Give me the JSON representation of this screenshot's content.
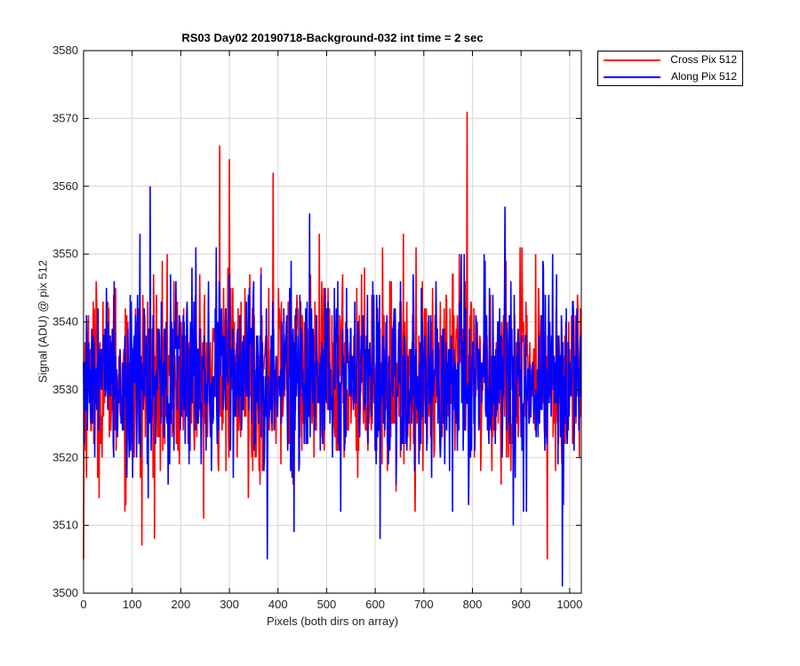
{
  "chart_data": {
    "type": "line",
    "title": "RS03 Day02 20190718-Background-032 int time = 2 sec",
    "xlabel": "Pixels (both dirs on array)",
    "ylabel": "Signal (ADU) @ pix 512",
    "xlim": [
      0,
      1024
    ],
    "ylim": [
      3500,
      3580
    ],
    "xticks": [
      0,
      100,
      200,
      300,
      400,
      500,
      600,
      700,
      800,
      900,
      1000
    ],
    "yticks": [
      3500,
      3510,
      3520,
      3530,
      3540,
      3550,
      3560,
      3570,
      3580
    ],
    "grid": true,
    "legend_position": "outside-top-right",
    "series": [
      {
        "name": "Cross Pix 512",
        "color": "#ff0000",
        "x_start": 0,
        "x_end": 1023,
        "mean": 3532,
        "std": 7,
        "points_sampled": 1024,
        "notable_points": [
          [
            0,
            3505
          ],
          [
            120,
            3507
          ],
          [
            280,
            3566
          ],
          [
            300,
            3564
          ],
          [
            390,
            3562
          ],
          [
            789,
            3571
          ],
          [
            954,
            3505
          ]
        ]
      },
      {
        "name": "Along Pix 512",
        "color": "#0000ff",
        "x_start": 0,
        "x_end": 1023,
        "mean": 3532,
        "std": 7,
        "points_sampled": 1024,
        "notable_points": [
          [
            137,
            3560
          ],
          [
            378,
            3505
          ],
          [
            610,
            3508
          ],
          [
            867,
            3557
          ],
          [
            985,
            3501
          ]
        ]
      }
    ]
  }
}
